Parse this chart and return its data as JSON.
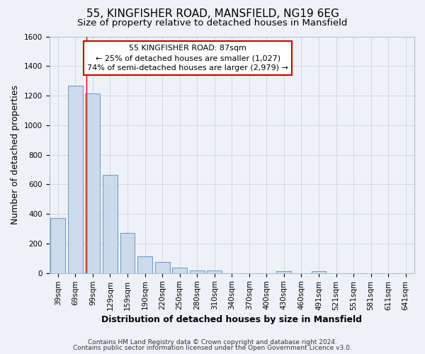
{
  "title": "55, KINGFISHER ROAD, MANSFIELD, NG19 6EG",
  "subtitle": "Size of property relative to detached houses in Mansfield",
  "xlabel": "Distribution of detached houses by size in Mansfield",
  "ylabel": "Number of detached properties",
  "categories": [
    "39sqm",
    "69sqm",
    "99sqm",
    "129sqm",
    "159sqm",
    "190sqm",
    "220sqm",
    "250sqm",
    "280sqm",
    "310sqm",
    "340sqm",
    "370sqm",
    "400sqm",
    "430sqm",
    "460sqm",
    "491sqm",
    "521sqm",
    "551sqm",
    "581sqm",
    "611sqm",
    "641sqm"
  ],
  "values": [
    370,
    1265,
    1215,
    665,
    270,
    115,
    75,
    38,
    20,
    20,
    0,
    0,
    0,
    15,
    0,
    15,
    0,
    0,
    0,
    0,
    0
  ],
  "bar_color": "#ccdaeb",
  "bar_edge_color": "#6699cc",
  "ylim": [
    0,
    1600
  ],
  "yticks": [
    0,
    200,
    400,
    600,
    800,
    1000,
    1200,
    1400,
    1600
  ],
  "vline_pos": 1.62,
  "annotation_line1": "55 KINGFISHER ROAD: 87sqm",
  "annotation_line2": "← 25% of detached houses are smaller (1,027)",
  "annotation_line3": "74% of semi-detached houses are larger (2,979) →",
  "footer_line1": "Contains HM Land Registry data © Crown copyright and database right 2024.",
  "footer_line2": "Contains public sector information licensed under the Open Government Licence v3.0.",
  "background_color": "#eef2f7",
  "grid_color": "#d0d8e4",
  "title_fontsize": 11,
  "subtitle_fontsize": 9.5,
  "axis_label_fontsize": 9,
  "tick_fontsize": 7.5,
  "annotation_fontsize": 8,
  "footer_fontsize": 6.5
}
